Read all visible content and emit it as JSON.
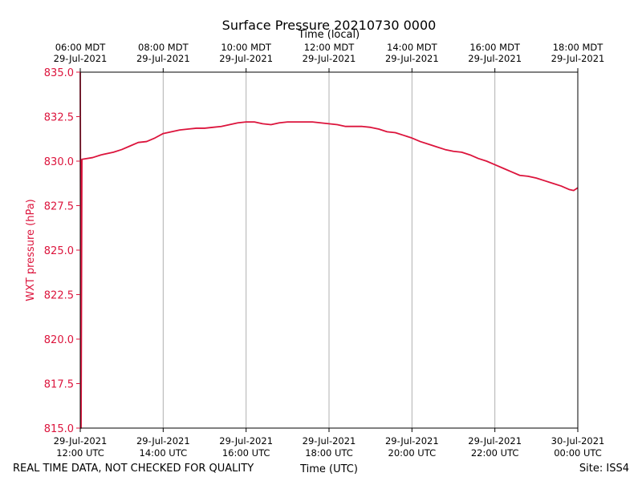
{
  "chart_data": {
    "type": "line",
    "title": "Surface Pressure 20210730 0000",
    "top_axis_label": "Time (local)",
    "xlabel": "Time (UTC)",
    "ylabel": "WXT pressure (hPa)",
    "ylim": [
      815.0,
      835.0
    ],
    "xlim_hours_utc": [
      12,
      24
    ],
    "y_ticks": [
      "815.0",
      "817.5",
      "820.0",
      "822.5",
      "825.0",
      "827.5",
      "830.0",
      "832.5",
      "835.0"
    ],
    "y_tick_values": [
      815.0,
      817.5,
      820.0,
      822.5,
      825.0,
      827.5,
      830.0,
      832.5,
      835.0
    ],
    "bottom_ticks": [
      {
        "hour": 12,
        "line1": "29-Jul-2021",
        "line2": "12:00 UTC"
      },
      {
        "hour": 14,
        "line1": "29-Jul-2021",
        "line2": "14:00 UTC"
      },
      {
        "hour": 16,
        "line1": "29-Jul-2021",
        "line2": "16:00 UTC"
      },
      {
        "hour": 18,
        "line1": "29-Jul-2021",
        "line2": "18:00 UTC"
      },
      {
        "hour": 20,
        "line1": "29-Jul-2021",
        "line2": "20:00 UTC"
      },
      {
        "hour": 22,
        "line1": "29-Jul-2021",
        "line2": "22:00 UTC"
      },
      {
        "hour": 24,
        "line1": "30-Jul-2021",
        "line2": "00:00 UTC"
      }
    ],
    "top_ticks": [
      {
        "hour": 12,
        "line1": "06:00 MDT",
        "line2": "29-Jul-2021"
      },
      {
        "hour": 14,
        "line1": "08:00 MDT",
        "line2": "29-Jul-2021"
      },
      {
        "hour": 16,
        "line1": "10:00 MDT",
        "line2": "29-Jul-2021"
      },
      {
        "hour": 18,
        "line1": "12:00 MDT",
        "line2": "29-Jul-2021"
      },
      {
        "hour": 20,
        "line1": "14:00 MDT",
        "line2": "29-Jul-2021"
      },
      {
        "hour": 22,
        "line1": "16:00 MDT",
        "line2": "29-Jul-2021"
      },
      {
        "hour": 24,
        "line1": "18:00 MDT",
        "line2": "29-Jul-2021"
      }
    ],
    "grid": "vertical",
    "series": [
      {
        "color": "#dc143c",
        "points": [
          [
            12.0,
            835.0
          ],
          [
            12.02,
            815.0
          ],
          [
            12.04,
            830.1
          ],
          [
            12.3,
            830.2
          ],
          [
            12.5,
            830.35
          ],
          [
            12.8,
            830.5
          ],
          [
            13.0,
            830.65
          ],
          [
            13.2,
            830.85
          ],
          [
            13.4,
            831.05
          ],
          [
            13.6,
            831.1
          ],
          [
            13.8,
            831.3
          ],
          [
            14.0,
            831.55
          ],
          [
            14.2,
            831.65
          ],
          [
            14.4,
            831.75
          ],
          [
            14.6,
            831.8
          ],
          [
            14.8,
            831.85
          ],
          [
            15.0,
            831.85
          ],
          [
            15.2,
            831.9
          ],
          [
            15.4,
            831.95
          ],
          [
            15.6,
            832.05
          ],
          [
            15.8,
            832.15
          ],
          [
            16.0,
            832.2
          ],
          [
            16.2,
            832.2
          ],
          [
            16.4,
            832.1
          ],
          [
            16.6,
            832.05
          ],
          [
            16.8,
            832.15
          ],
          [
            17.0,
            832.2
          ],
          [
            17.2,
            832.2
          ],
          [
            17.4,
            832.2
          ],
          [
            17.6,
            832.2
          ],
          [
            17.8,
            832.15
          ],
          [
            18.0,
            832.1
          ],
          [
            18.2,
            832.05
          ],
          [
            18.4,
            831.95
          ],
          [
            18.6,
            831.95
          ],
          [
            18.8,
            831.95
          ],
          [
            19.0,
            831.9
          ],
          [
            19.2,
            831.8
          ],
          [
            19.4,
            831.65
          ],
          [
            19.6,
            831.6
          ],
          [
            19.8,
            831.45
          ],
          [
            20.0,
            831.3
          ],
          [
            20.2,
            831.1
          ],
          [
            20.4,
            830.95
          ],
          [
            20.6,
            830.8
          ],
          [
            20.8,
            830.65
          ],
          [
            21.0,
            830.55
          ],
          [
            21.2,
            830.5
          ],
          [
            21.4,
            830.35
          ],
          [
            21.6,
            830.15
          ],
          [
            21.8,
            830.0
          ],
          [
            22.0,
            829.8
          ],
          [
            22.2,
            829.6
          ],
          [
            22.4,
            829.4
          ],
          [
            22.6,
            829.2
          ],
          [
            22.8,
            829.15
          ],
          [
            23.0,
            829.05
          ],
          [
            23.2,
            828.9
          ],
          [
            23.4,
            828.75
          ],
          [
            23.6,
            828.6
          ],
          [
            23.8,
            828.4
          ],
          [
            23.9,
            828.35
          ],
          [
            24.0,
            828.5
          ]
        ]
      }
    ]
  },
  "footer": {
    "disclaimer": "REAL TIME DATA, NOT CHECKED FOR QUALITY",
    "site": "Site: ISS4"
  },
  "colors": {
    "series": "#dc143c",
    "ylabel": "#dc143c",
    "grid": "#b0b0b0",
    "axis": "#000000"
  }
}
